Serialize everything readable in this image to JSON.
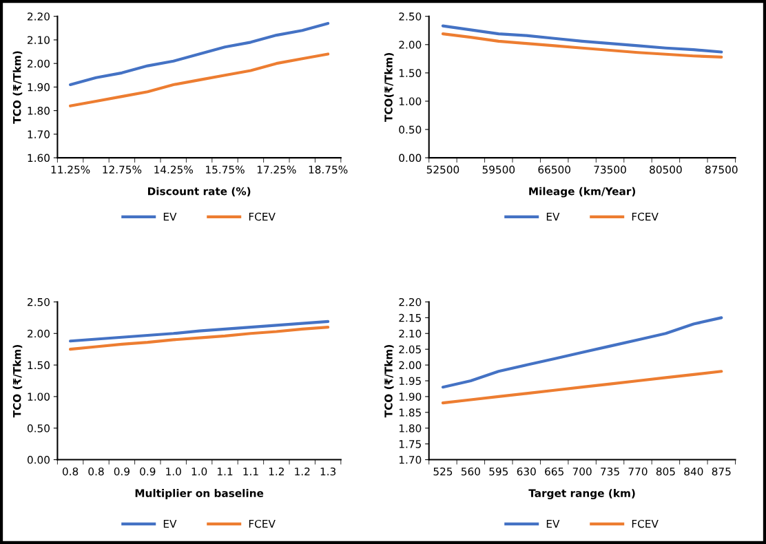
{
  "chart_data": [
    {
      "type": "line",
      "xlabel": "Discount rate (%)",
      "ylabel": "TCO (₹/Tkm)",
      "legend": "bottom",
      "grid": false,
      "categories": [
        "11.25%",
        null,
        "12.75%",
        null,
        "14.25%",
        null,
        "15.75%",
        null,
        "17.25%",
        null,
        "18.75%"
      ],
      "ylim": [
        1.6,
        2.2
      ],
      "yticks": [
        {
          "value": 1.6,
          "label": "1.60"
        },
        {
          "value": 1.7,
          "label": "1.70"
        },
        {
          "value": 1.8,
          "label": "1.80"
        },
        {
          "value": 1.9,
          "label": "1.90"
        },
        {
          "value": 2.0,
          "label": "2.00"
        },
        {
          "value": 2.1,
          "label": "2.10"
        },
        {
          "value": 2.2,
          "label": "2.20"
        }
      ],
      "series": [
        {
          "name": "EV",
          "color": "#4472c4",
          "values": [
            1.91,
            1.94,
            1.96,
            1.99,
            2.01,
            2.04,
            2.07,
            2.09,
            2.12,
            2.14,
            2.17
          ]
        },
        {
          "name": "FCEV",
          "color": "#ed7d31",
          "values": [
            1.82,
            1.84,
            1.86,
            1.88,
            1.91,
            1.93,
            1.95,
            1.97,
            2.0,
            2.02,
            2.04
          ]
        }
      ]
    },
    {
      "type": "line",
      "xlabel": "Mileage (km/Year)",
      "ylabel": "TCO(₹/Tkm)",
      "legend": "bottom",
      "grid": false,
      "categories": [
        "52500",
        null,
        "59500",
        null,
        "66500",
        null,
        "73500",
        null,
        "80500",
        null,
        "87500"
      ],
      "ylim": [
        0,
        2.5
      ],
      "yticks": [
        {
          "value": 0,
          "label": "0.00"
        },
        {
          "value": 0.5,
          "label": "0.50"
        },
        {
          "value": 1.0,
          "label": "1.00"
        },
        {
          "value": 1.5,
          "label": "1.50"
        },
        {
          "value": 2.0,
          "label": "2.00"
        },
        {
          "value": 2.5,
          "label": "2.50"
        }
      ],
      "series": [
        {
          "name": "EV",
          "color": "#4472c4",
          "values": [
            2.33,
            2.26,
            2.19,
            2.16,
            2.11,
            2.06,
            2.02,
            1.98,
            1.94,
            1.91,
            1.87
          ]
        },
        {
          "name": "FCEV",
          "color": "#ed7d31",
          "values": [
            2.19,
            2.13,
            2.06,
            2.02,
            1.98,
            1.94,
            1.9,
            1.86,
            1.83,
            1.8,
            1.78
          ]
        }
      ]
    },
    {
      "type": "line",
      "xlabel": "Multiplier on baseline",
      "ylabel": "TCO (₹/Tkm)",
      "legend": "bottom",
      "grid": false,
      "categories": [
        "0.8",
        "0.8",
        "0.9",
        "0.9",
        "1.0",
        "1.0",
        "1.1",
        "1.1",
        "1.2",
        "1.2",
        "1.3"
      ],
      "ylim": [
        0,
        2.5
      ],
      "yticks": [
        {
          "value": 0,
          "label": "0.00"
        },
        {
          "value": 0.5,
          "label": "0.50"
        },
        {
          "value": 1.0,
          "label": "1.00"
        },
        {
          "value": 1.5,
          "label": "1.50"
        },
        {
          "value": 2.0,
          "label": "2.00"
        },
        {
          "value": 2.5,
          "label": "2.50"
        }
      ],
      "series": [
        {
          "name": "EV",
          "color": "#4472c4",
          "values": [
            1.88,
            1.91,
            1.94,
            1.97,
            2.0,
            2.04,
            2.07,
            2.1,
            2.13,
            2.16,
            2.19
          ]
        },
        {
          "name": "FCEV",
          "color": "#ed7d31",
          "values": [
            1.75,
            1.79,
            1.83,
            1.86,
            1.9,
            1.93,
            1.96,
            2.0,
            2.03,
            2.07,
            2.1
          ]
        }
      ]
    },
    {
      "type": "line",
      "xlabel": "Target range (km)",
      "ylabel": "TCO (₹/Tkm)",
      "legend": "bottom",
      "grid": false,
      "categories": [
        "525",
        "560",
        "595",
        "630",
        "665",
        "700",
        "735",
        "770",
        "805",
        "840",
        "875"
      ],
      "ylim": [
        1.7,
        2.2
      ],
      "yticks": [
        {
          "value": 1.7,
          "label": "1.70"
        },
        {
          "value": 1.75,
          "label": "1.75"
        },
        {
          "value": 1.8,
          "label": "1.80"
        },
        {
          "value": 1.85,
          "label": "1.85"
        },
        {
          "value": 1.9,
          "label": "1.90"
        },
        {
          "value": 1.95,
          "label": "1.95"
        },
        {
          "value": 2.0,
          "label": "2.00"
        },
        {
          "value": 2.05,
          "label": "2.05"
        },
        {
          "value": 2.1,
          "label": "2.10"
        },
        {
          "value": 2.15,
          "label": "2.15"
        },
        {
          "value": 2.2,
          "label": "2.20"
        }
      ],
      "series": [
        {
          "name": "EV",
          "color": "#4472c4",
          "values": [
            1.93,
            1.95,
            1.98,
            2.0,
            2.02,
            2.04,
            2.06,
            2.08,
            2.1,
            2.13,
            2.15
          ]
        },
        {
          "name": "FCEV",
          "color": "#ed7d31",
          "values": [
            1.88,
            1.89,
            1.9,
            1.91,
            1.92,
            1.93,
            1.94,
            1.95,
            1.96,
            1.97,
            1.98
          ]
        }
      ]
    }
  ]
}
